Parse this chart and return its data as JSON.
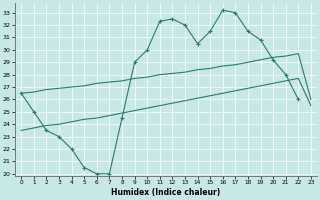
{
  "bg_color": "#c8e8e8",
  "line_color": "#2a7a70",
  "xlabel": "Humidex (Indice chaleur)",
  "xlim": [
    -0.5,
    23.5
  ],
  "ylim": [
    19.8,
    33.8
  ],
  "xtick_vals": [
    0,
    1,
    2,
    3,
    4,
    5,
    6,
    7,
    8,
    9,
    10,
    11,
    12,
    13,
    14,
    15,
    16,
    17,
    18,
    19,
    20,
    21,
    22,
    23
  ],
  "ytick_vals": [
    20,
    21,
    22,
    23,
    24,
    25,
    26,
    27,
    28,
    29,
    30,
    31,
    32,
    33
  ],
  "series": [
    {
      "x": [
        0,
        1,
        2,
        3,
        4,
        5,
        6,
        7,
        8,
        9,
        10,
        11,
        12,
        13,
        14,
        15,
        16,
        17,
        18,
        19,
        20,
        21,
        22
      ],
      "y": [
        26.5,
        25.0,
        23.5,
        23.0,
        22.0,
        20.5,
        20.0,
        20.0,
        24.5,
        29.0,
        30.0,
        32.3,
        32.5,
        32.0,
        30.5,
        31.5,
        33.2,
        33.0,
        31.5,
        30.8,
        29.2,
        28.0,
        26.0
      ],
      "marker": true
    },
    {
      "x": [
        0,
        1,
        2,
        3,
        4,
        5,
        6,
        7,
        8,
        9,
        10,
        11,
        12,
        13,
        14,
        15,
        16,
        17,
        18,
        19,
        20,
        21,
        22,
        23
      ],
      "y": [
        26.5,
        26.6,
        26.8,
        26.9,
        27.0,
        27.1,
        27.3,
        27.4,
        27.5,
        27.7,
        27.8,
        28.0,
        28.1,
        28.2,
        28.4,
        28.5,
        28.7,
        28.8,
        29.0,
        29.2,
        29.4,
        29.5,
        29.7,
        26.0
      ],
      "marker": false
    },
    {
      "x": [
        0,
        1,
        2,
        3,
        4,
        5,
        6,
        7,
        8,
        9,
        10,
        11,
        12,
        13,
        14,
        15,
        16,
        17,
        18,
        19,
        20,
        21,
        22,
        23
      ],
      "y": [
        23.5,
        23.7,
        23.9,
        24.0,
        24.2,
        24.4,
        24.5,
        24.7,
        24.9,
        25.1,
        25.3,
        25.5,
        25.7,
        25.9,
        26.1,
        26.3,
        26.5,
        26.7,
        26.9,
        27.1,
        27.3,
        27.5,
        27.7,
        25.5
      ],
      "marker": false
    }
  ]
}
